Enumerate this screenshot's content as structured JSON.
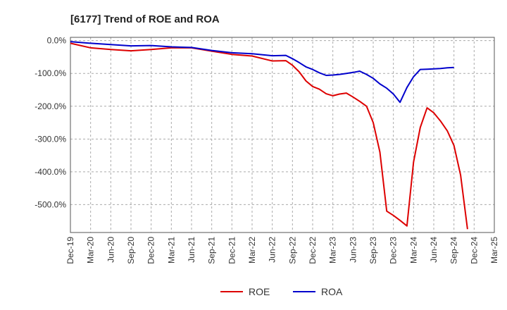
{
  "chart_data": {
    "type": "line",
    "title": "[6177]  Trend of ROE and ROA",
    "xlabel": "",
    "ylabel": "",
    "x_ticks": [
      "Dec-19",
      "Mar-20",
      "Jun-20",
      "Sep-20",
      "Dec-20",
      "Mar-21",
      "Jun-21",
      "Sep-21",
      "Dec-21",
      "Mar-22",
      "Jun-22",
      "Sep-22",
      "Dec-22",
      "Mar-23",
      "Jun-23",
      "Sep-23",
      "Dec-23",
      "Mar-24",
      "Jun-24",
      "Sep-24",
      "Dec-24",
      "Mar-25"
    ],
    "y_ticks": [
      {
        "value": 0,
        "label": "0.0%"
      },
      {
        "value": -100,
        "label": "-100.0%"
      },
      {
        "value": -200,
        "label": "-200.0%"
      },
      {
        "value": -300,
        "label": "-300.0%"
      },
      {
        "value": -400,
        "label": "-400.0%"
      },
      {
        "value": -500,
        "label": "-500.0%"
      }
    ],
    "ylim": [
      -585,
      10
    ],
    "xlim": [
      0,
      21
    ],
    "grid": true,
    "legend_position": "bottom",
    "series": [
      {
        "name": "ROE",
        "color": "#dd0000",
        "points": [
          [
            0,
            -8
          ],
          [
            1,
            -22
          ],
          [
            2,
            -27
          ],
          [
            3,
            -31
          ],
          [
            4,
            -27
          ],
          [
            5,
            -22
          ],
          [
            6,
            -22
          ],
          [
            7,
            -32
          ],
          [
            8,
            -42
          ],
          [
            9,
            -47
          ],
          [
            10,
            -62
          ],
          [
            10.67,
            -61
          ],
          [
            11,
            -75
          ],
          [
            11.33,
            -95
          ],
          [
            11.67,
            -123
          ],
          [
            12,
            -140
          ],
          [
            12.33,
            -148
          ],
          [
            12.67,
            -162
          ],
          [
            13,
            -168
          ],
          [
            13.33,
            -163
          ],
          [
            13.67,
            -160
          ],
          [
            14,
            -172
          ],
          [
            14.33,
            -185
          ],
          [
            14.67,
            -200
          ],
          [
            15,
            -250
          ],
          [
            15.33,
            -340
          ],
          [
            15.67,
            -520
          ],
          [
            16,
            -533
          ],
          [
            16.33,
            -548
          ],
          [
            16.67,
            -565
          ],
          [
            17,
            -370
          ],
          [
            17.33,
            -265
          ],
          [
            17.67,
            -205
          ],
          [
            18,
            -220
          ],
          [
            18.33,
            -245
          ],
          [
            18.67,
            -275
          ],
          [
            19,
            -320
          ],
          [
            19.33,
            -410
          ],
          [
            19.67,
            -575
          ]
        ]
      },
      {
        "name": "ROA",
        "color": "#0000cc",
        "points": [
          [
            0,
            -3
          ],
          [
            1,
            -8
          ],
          [
            2,
            -12
          ],
          [
            3,
            -16
          ],
          [
            4,
            -15
          ],
          [
            5,
            -19
          ],
          [
            6,
            -21
          ],
          [
            7,
            -30
          ],
          [
            8,
            -37
          ],
          [
            9,
            -40
          ],
          [
            10,
            -46
          ],
          [
            10.67,
            -45
          ],
          [
            11,
            -55
          ],
          [
            11.33,
            -67
          ],
          [
            11.67,
            -80
          ],
          [
            12,
            -88
          ],
          [
            12.33,
            -98
          ],
          [
            12.67,
            -106
          ],
          [
            13,
            -105
          ],
          [
            13.33,
            -103
          ],
          [
            13.67,
            -100
          ],
          [
            14,
            -97
          ],
          [
            14.33,
            -93
          ],
          [
            14.67,
            -103
          ],
          [
            15,
            -115
          ],
          [
            15.33,
            -132
          ],
          [
            15.67,
            -145
          ],
          [
            16,
            -163
          ],
          [
            16.33,
            -188
          ],
          [
            16.67,
            -143
          ],
          [
            17,
            -110
          ],
          [
            17.33,
            -88
          ],
          [
            17.67,
            -87
          ],
          [
            18,
            -86
          ],
          [
            18.33,
            -85
          ],
          [
            18.67,
            -83
          ],
          [
            19,
            -82
          ]
        ]
      }
    ]
  }
}
